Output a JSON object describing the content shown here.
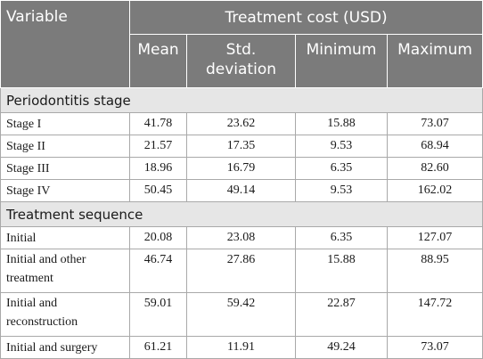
{
  "header": {
    "variable": "Variable",
    "group": "Treatment cost (USD)",
    "columns": [
      "Mean",
      "Std. deviation",
      "Minimum",
      "Maximum"
    ]
  },
  "sections": [
    {
      "title": "Periodontitis stage",
      "rows": [
        {
          "label": "Stage I",
          "values": [
            "41.78",
            "23.62",
            "15.88",
            "73.07"
          ]
        },
        {
          "label": "Stage II",
          "values": [
            "21.57",
            "17.35",
            "9.53",
            "68.94"
          ]
        },
        {
          "label": "Stage III",
          "values": [
            "18.96",
            "16.79",
            "6.35",
            "82.60"
          ]
        },
        {
          "label": "Stage IV",
          "values": [
            "50.45",
            "49.14",
            "9.53",
            "162.02"
          ]
        }
      ]
    },
    {
      "title": "Treatment sequence",
      "rows": [
        {
          "label": "Initial",
          "values": [
            "20.08",
            "23.08",
            "6.35",
            "127.07"
          ]
        },
        {
          "label": "Initial and other treatment",
          "values": [
            "46.74",
            "27.86",
            "15.88",
            "88.95"
          ]
        },
        {
          "label": "Initial and reconstruction",
          "values": [
            "59.01",
            "59.42",
            "22.87",
            "147.72"
          ]
        },
        {
          "label": "Initial and surgery",
          "values": [
            "61.21",
            "11.91",
            "49.24",
            "73.07"
          ]
        }
      ]
    }
  ]
}
